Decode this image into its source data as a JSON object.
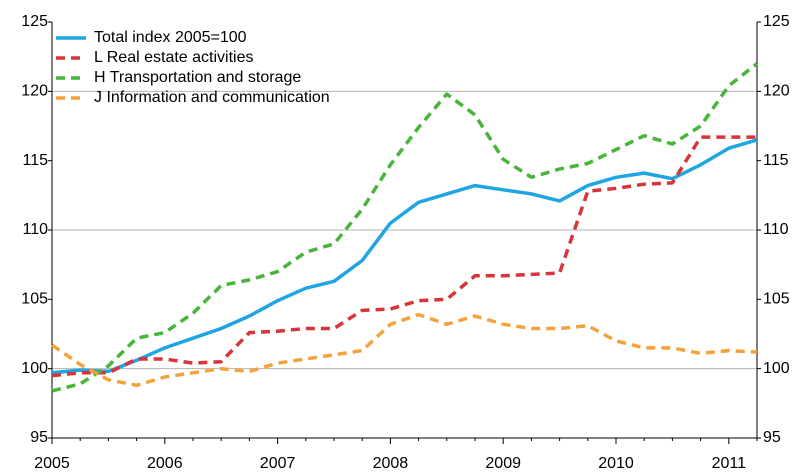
{
  "chart_data": {
    "type": "line",
    "categories": [
      "2005",
      null,
      null,
      null,
      "2006",
      null,
      null,
      null,
      "2007",
      null,
      null,
      null,
      "2008",
      null,
      null,
      null,
      "2009",
      null,
      null,
      null,
      "2010",
      null,
      null,
      null,
      "2011",
      null
    ],
    "series": [
      {
        "name": "Total index 2005=100",
        "color": "#1ea5e2",
        "dashed": false,
        "values": [
          99.7,
          99.9,
          99.8,
          100.6,
          101.5,
          102.2,
          102.9,
          103.8,
          104.9,
          105.8,
          106.3,
          107.8,
          110.5,
          112.0,
          112.6,
          113.2,
          112.9,
          112.6,
          112.1,
          113.2,
          113.8,
          114.1,
          113.7,
          114.7,
          115.9,
          116.5
        ]
      },
      {
        "name": "L Real estate activities",
        "color": "#d8343a",
        "dashed": true,
        "values": [
          99.5,
          99.7,
          99.7,
          100.7,
          100.7,
          100.4,
          100.5,
          102.6,
          102.7,
          102.9,
          102.9,
          104.2,
          104.3,
          104.9,
          105.0,
          106.7,
          106.7,
          106.8,
          106.9,
          112.8,
          113.0,
          113.3,
          113.4,
          116.7,
          116.7,
          116.7
        ]
      },
      {
        "name": "H Transportation and storage",
        "color": "#47b538",
        "dashed": true,
        "values": [
          98.4,
          98.9,
          100.2,
          102.2,
          102.6,
          104.0,
          106.0,
          106.4,
          107.0,
          108.4,
          109.0,
          111.5,
          114.7,
          117.4,
          119.8,
          118.3,
          115.1,
          113.8,
          114.4,
          114.8,
          115.8,
          116.8,
          116.2,
          117.5,
          120.4,
          122.0
        ]
      },
      {
        "name": "J Information and communication",
        "color": "#f5a23b",
        "dashed": true,
        "values": [
          101.7,
          100.3,
          99.2,
          98.8,
          99.4,
          99.7,
          100.0,
          99.8,
          100.4,
          100.7,
          101.0,
          101.3,
          103.2,
          103.9,
          103.2,
          103.8,
          103.2,
          102.9,
          102.9,
          103.1,
          102.0,
          101.5,
          101.5,
          101.1,
          101.3,
          101.2
        ]
      }
    ],
    "ylim": [
      95,
      125
    ],
    "yticks": [
      95,
      100,
      105,
      110,
      115,
      120,
      125
    ],
    "y2lim": [
      95,
      125
    ],
    "y2ticks": [
      95,
      100,
      105,
      110,
      115,
      120,
      125
    ],
    "grid": true,
    "legend": "upper left"
  }
}
